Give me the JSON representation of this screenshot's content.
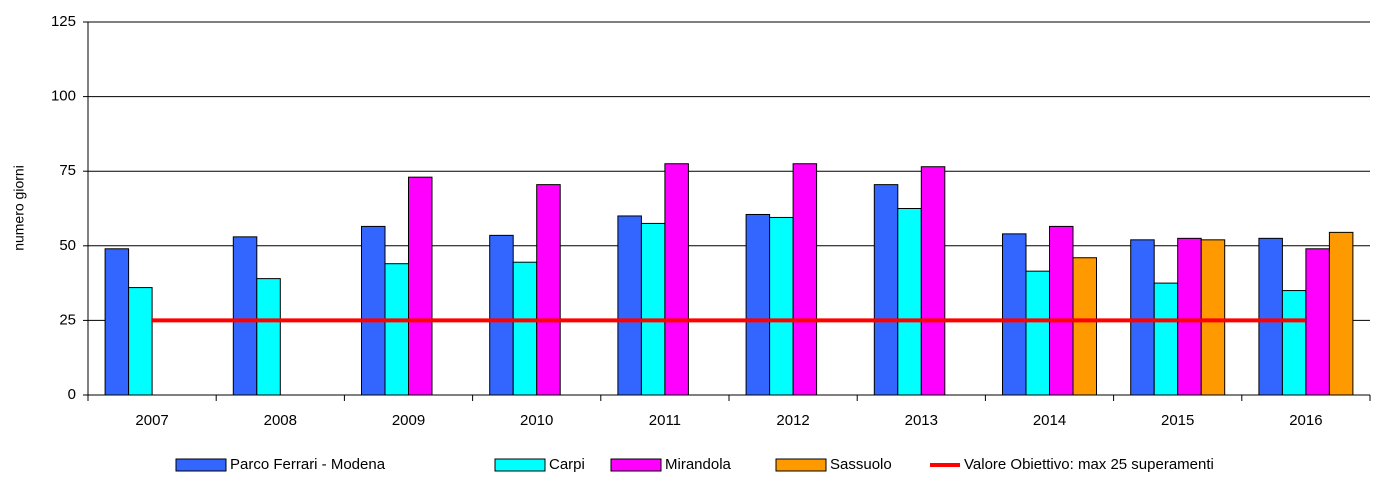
{
  "chart_data": {
    "type": "bar",
    "y_label": "numero giorni",
    "categories": [
      "2007",
      "2008",
      "2009",
      "2010",
      "2011",
      "2012",
      "2013",
      "2014",
      "2015",
      "2016"
    ],
    "series": [
      {
        "name": "Parco Ferrari - Modena",
        "color": "#3366FF",
        "values": [
          49,
          53,
          56.5,
          53.5,
          60,
          60.5,
          70.5,
          54,
          52,
          52.5
        ]
      },
      {
        "name": "Carpi",
        "color": "#00FFFF",
        "values": [
          36,
          39,
          44,
          44.5,
          57.5,
          59.5,
          62.5,
          41.5,
          37.5,
          35
        ]
      },
      {
        "name": "Mirandola",
        "color": "#FF00FF",
        "values": [
          null,
          null,
          73,
          70.5,
          77.5,
          77.5,
          76.5,
          56.5,
          52.5,
          49
        ]
      },
      {
        "name": "Sassuolo",
        "color": "#FF9900",
        "values": [
          null,
          null,
          null,
          null,
          null,
          null,
          null,
          46,
          52,
          54.5
        ]
      },
      {
        "name": "Valore Obiettivo: max 25 superamenti",
        "color": "#FF0000",
        "type": "line",
        "values": [
          25,
          25,
          25,
          25,
          25,
          25,
          25,
          25,
          25,
          25
        ]
      }
    ],
    "ylim": [
      0,
      125
    ],
    "yticks": [
      0,
      25,
      50,
      75,
      100,
      125
    ],
    "grid": true,
    "legend": "bottom"
  }
}
